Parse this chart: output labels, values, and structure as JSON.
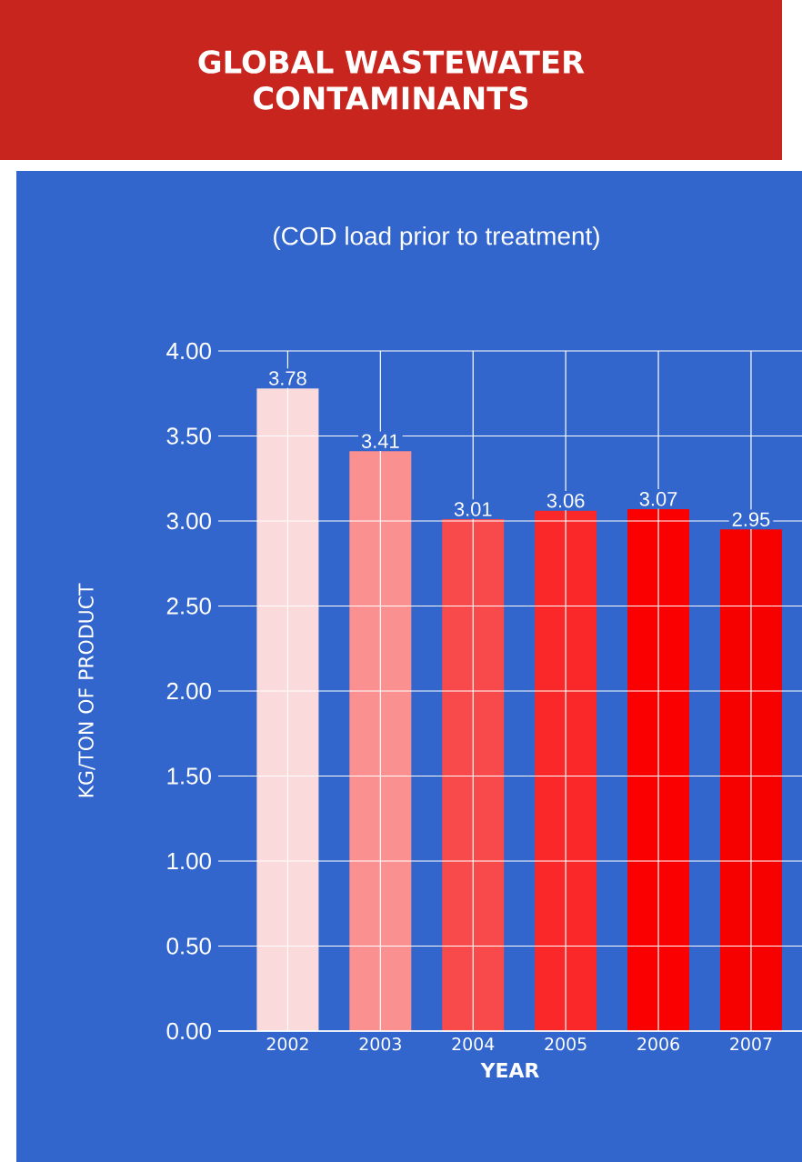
{
  "chart_data": {
    "type": "bar",
    "title": "GLOBAL WASTEWATER CONTAMINANTS",
    "subtitle": "(COD load prior to treatment)",
    "xlabel": "YEAR",
    "ylabel": "KG/TON OF PRODUCT",
    "categories": [
      "2002",
      "2003",
      "2004",
      "2005",
      "2006",
      "2007"
    ],
    "values": [
      3.78,
      3.41,
      3.01,
      3.06,
      3.07,
      2.95
    ],
    "colors": [
      "#fadada",
      "#fa9090",
      "#f84a4a",
      "#fa2828",
      "#fa0000",
      "#f70000"
    ],
    "ylim": [
      0,
      4
    ],
    "yticks": [
      {
        "value": 0,
        "label": "0.00"
      },
      {
        "value": 0.5,
        "label": "0.50"
      },
      {
        "value": 1,
        "label": "1.00"
      },
      {
        "value": 1.5,
        "label": "1.50"
      },
      {
        "value": 2,
        "label": "2.00"
      },
      {
        "value": 2.5,
        "label": "2.50"
      },
      {
        "value": 3,
        "label": "3.00"
      },
      {
        "value": 3.5,
        "label": "3.50"
      },
      {
        "value": 4,
        "label": "4.00"
      }
    ],
    "grid": true,
    "data_labels": true
  }
}
